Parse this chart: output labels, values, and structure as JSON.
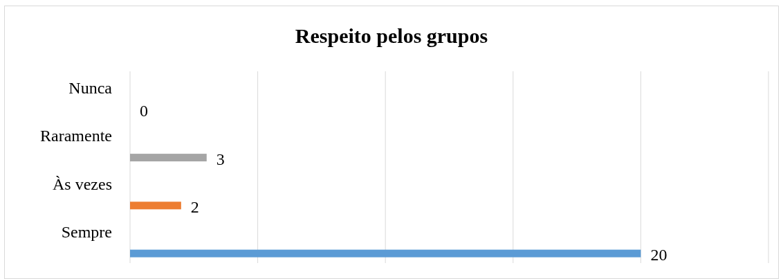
{
  "chart_data": {
    "type": "bar",
    "orientation": "horizontal",
    "title": "Respeito pelos grupos",
    "categories": [
      "Nunca",
      "Raramente",
      "Às vezes",
      "Sempre"
    ],
    "values": [
      0,
      3,
      2,
      20
    ],
    "colors": [
      "#ffc000",
      "#a5a5a5",
      "#ed7d31",
      "#5b9bd5"
    ],
    "xlim": [
      0,
      25
    ],
    "xticks": [
      {
        "value": 0,
        "label": null
      },
      {
        "value": 5,
        "label": null
      },
      {
        "value": 10,
        "label": null
      },
      {
        "value": 15,
        "label": null
      },
      {
        "value": 20,
        "label": null
      },
      {
        "value": 25,
        "label": null
      }
    ],
    "grid": "x",
    "tick_labels": "y",
    "data_labels": true
  }
}
